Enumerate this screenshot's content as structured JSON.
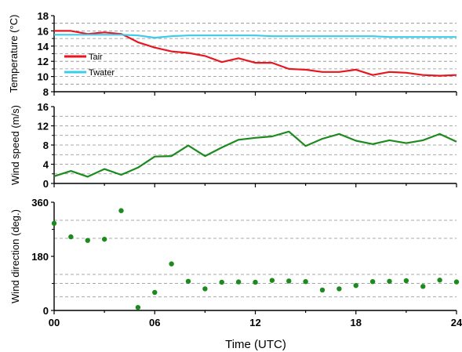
{
  "figure": {
    "xlabel": "Time (UTC)"
  },
  "chart_data": [
    {
      "type": "line",
      "ylabel": "Temperature (°C)",
      "ylim": [
        8,
        18
      ],
      "yticks": [
        "8",
        "10",
        "12",
        "14",
        "16",
        "18"
      ],
      "xlim": [
        0,
        24
      ],
      "grid": true,
      "legend": "left",
      "series": [
        {
          "name": "Tair",
          "color": "#e8161f",
          "x": [
            0,
            1,
            2,
            3,
            4,
            4.3,
            5,
            6,
            7,
            8,
            9,
            10,
            11,
            12,
            13,
            14,
            15,
            16,
            17,
            18,
            19,
            20,
            21,
            22,
            23,
            24
          ],
          "y": [
            16.0,
            16.0,
            15.6,
            15.8,
            15.6,
            15.3,
            14.5,
            13.8,
            13.3,
            13.1,
            12.7,
            11.9,
            12.4,
            11.8,
            11.8,
            11.0,
            10.9,
            10.6,
            10.6,
            10.9,
            10.2,
            10.6,
            10.5,
            10.2,
            10.1,
            10.2
          ]
        },
        {
          "name": "Twater",
          "color": "#3ccbea",
          "x": [
            0,
            1,
            2,
            3,
            4,
            5,
            6,
            7,
            8,
            9,
            10,
            11,
            12,
            13,
            14,
            15,
            16,
            17,
            18,
            19,
            20,
            21,
            22,
            23,
            24
          ],
          "y": [
            15.5,
            15.5,
            15.5,
            15.5,
            15.5,
            15.4,
            15.1,
            15.3,
            15.4,
            15.4,
            15.4,
            15.4,
            15.4,
            15.3,
            15.3,
            15.3,
            15.3,
            15.3,
            15.3,
            15.3,
            15.2,
            15.2,
            15.2,
            15.2,
            15.2
          ]
        }
      ]
    },
    {
      "type": "line",
      "ylabel": "Wind speed (m/s)",
      "ylim": [
        0,
        16
      ],
      "yticks": [
        "0",
        "4",
        "8",
        "12",
        "16"
      ],
      "xlim": [
        0,
        24
      ],
      "grid": true,
      "series": [
        {
          "color": "#1c8a1c",
          "x": [
            0,
            1,
            2,
            3,
            4,
            5,
            6,
            7,
            8,
            9,
            10,
            11,
            12,
            13,
            14,
            15,
            16,
            17,
            18,
            19,
            20,
            21,
            22,
            23,
            24
          ],
          "y": [
            1.5,
            2.6,
            1.4,
            3.0,
            1.8,
            3.3,
            5.6,
            5.7,
            7.9,
            5.7,
            7.5,
            9.1,
            9.5,
            9.8,
            10.8,
            7.8,
            9.3,
            10.3,
            8.9,
            8.2,
            9.0,
            8.4,
            9.0,
            10.3,
            8.7
          ]
        }
      ]
    },
    {
      "type": "scatter",
      "ylabel": "Wind direction (deg.)",
      "ylim": [
        0,
        360
      ],
      "yticks": [
        "0",
        "180",
        "360"
      ],
      "xlim": [
        0,
        24
      ],
      "xticks": [
        "00",
        "06",
        "12",
        "18",
        "24"
      ],
      "grid": true,
      "series": [
        {
          "color": "#1c8a1c",
          "x": [
            0,
            1,
            2,
            3,
            4,
            5,
            6,
            7,
            8,
            9,
            10,
            11,
            12,
            13,
            14,
            15,
            16,
            17,
            18,
            19,
            20,
            21,
            22,
            23,
            24
          ],
          "y": [
            290,
            245,
            233,
            237,
            332,
            10,
            60,
            155,
            97,
            72,
            94,
            95,
            94,
            100,
            98,
            96,
            68,
            72,
            83,
            96,
            97,
            99,
            80,
            101,
            95
          ]
        }
      ]
    }
  ]
}
